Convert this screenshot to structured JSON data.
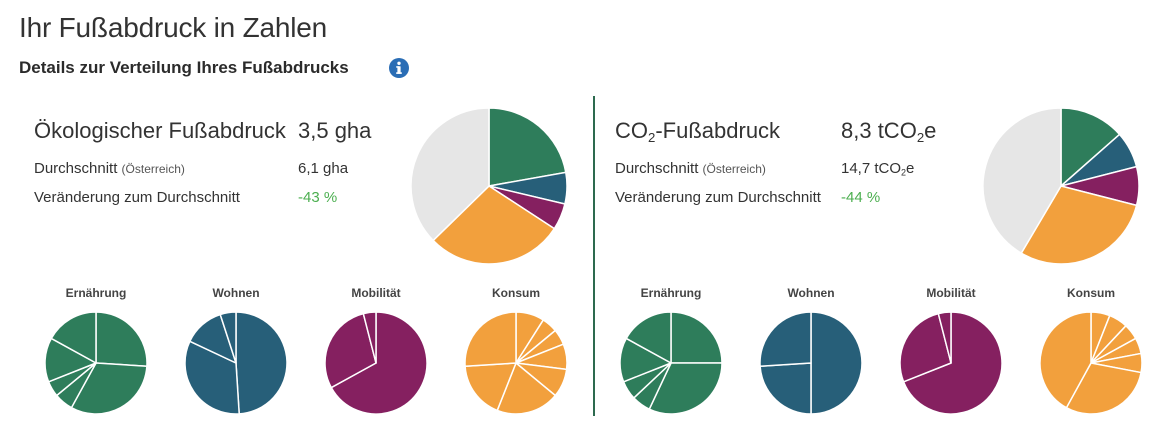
{
  "header": {
    "title": "Ihr Fußabdruck in Zahlen",
    "subtitle": "Details zur Verteilung Ihres Fußabdrucks"
  },
  "colors": {
    "green": "#2e7d5b",
    "blue": "#275f79",
    "purple": "#852060",
    "orange": "#f2a03d",
    "grey": "#e6e6e6",
    "positive_green": "#4caf50",
    "info_blue": "#2a6db5"
  },
  "eco": {
    "title": "Ökologischer Fußabdruck",
    "value": "3,5 gha",
    "avg_label": "Durchschnitt",
    "avg_region": "(Österreich)",
    "avg_value": "6,1 gha",
    "change_label": "Veränderung zum Durchschnitt",
    "change_value": "-43 %"
  },
  "co2": {
    "title_main": "CO",
    "title_sub": "2",
    "title_rest": "-Fußabdruck",
    "value_main": "8,3 tCO",
    "value_sub": "2",
    "value_rest": "e",
    "avg_label": "Durchschnitt",
    "avg_region": "(Österreich)",
    "avg_value_main": "14,7 tCO",
    "avg_value_sub": "2",
    "avg_value_rest": "e",
    "change_label": "Veränderung zum Durchschnitt",
    "change_value": "-44 %"
  },
  "categories": {
    "eco": [
      "Ernährung",
      "Wohnen",
      "Mobilität",
      "Konsum"
    ],
    "co2": [
      "Ernährung",
      "Wohnen",
      "Mobilität",
      "Konsum"
    ]
  },
  "chart_data": [
    {
      "type": "pie",
      "id": "eco-main",
      "slices": [
        {
          "category": "Ernährung",
          "value": 0.222,
          "color": "#2e7d5b"
        },
        {
          "category": "Wohnen",
          "value": 0.065,
          "color": "#275f79"
        },
        {
          "category": "Mobilität",
          "value": 0.055,
          "color": "#852060"
        },
        {
          "category": "Konsum",
          "value": 0.285,
          "color": "#f2a03d"
        },
        {
          "category": "",
          "value": 0.373,
          "color": "#e6e6e6"
        }
      ]
    },
    {
      "type": "pie",
      "id": "co2-main",
      "slices": [
        {
          "category": "Ernährung",
          "value": 0.135,
          "color": "#2e7d5b"
        },
        {
          "category": "Wohnen",
          "value": 0.075,
          "color": "#275f79"
        },
        {
          "category": "Mobilität",
          "value": 0.08,
          "color": "#852060"
        },
        {
          "category": "Konsum",
          "value": 0.295,
          "color": "#f2a03d"
        },
        {
          "category": "",
          "value": 0.415,
          "color": "#e6e6e6"
        }
      ]
    },
    {
      "type": "pie",
      "id": "eco-ernaehrung",
      "color": "#2e7d5b",
      "slices": [
        0.26,
        0.32,
        0.06,
        0.05,
        0.14,
        0.17
      ]
    },
    {
      "type": "pie",
      "id": "eco-wohnen",
      "color": "#275f79",
      "slices": [
        0.49,
        0.33,
        0.13,
        0.05
      ]
    },
    {
      "type": "pie",
      "id": "eco-mobilitaet",
      "color": "#852060",
      "slices": [
        0.67,
        0.29,
        0.04
      ]
    },
    {
      "type": "pie",
      "id": "eco-konsum",
      "color": "#f2a03d",
      "slices": [
        0.09,
        0.05,
        0.05,
        0.08,
        0.09,
        0.2,
        0.18,
        0.26
      ]
    },
    {
      "type": "pie",
      "id": "co2-ernaehrung",
      "color": "#2e7d5b",
      "slices": [
        0.25,
        0.32,
        0.06,
        0.06,
        0.14,
        0.17
      ]
    },
    {
      "type": "pie",
      "id": "co2-wohnen",
      "color": "#275f79",
      "slices": [
        0.5,
        0.24,
        0.26
      ]
    },
    {
      "type": "pie",
      "id": "co2-mobilitaet",
      "color": "#852060",
      "slices": [
        0.69,
        0.27,
        0.04
      ]
    },
    {
      "type": "pie",
      "id": "co2-konsum",
      "color": "#f2a03d",
      "slices": [
        0.06,
        0.06,
        0.05,
        0.05,
        0.06,
        0.3,
        0.42
      ]
    }
  ]
}
